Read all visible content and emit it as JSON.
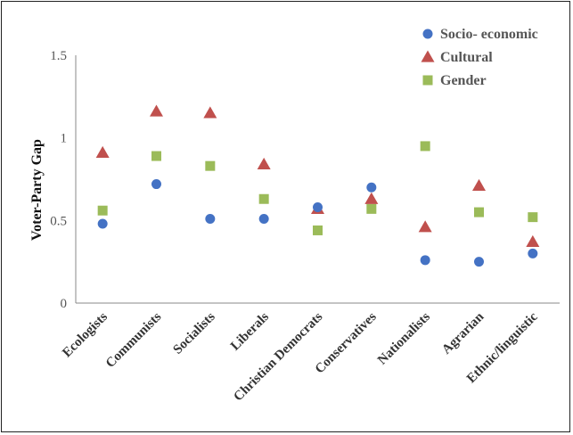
{
  "chart_data": {
    "type": "scatter",
    "ylabel": "Voter-Party Gap",
    "xlabel": "",
    "ylim": [
      0,
      1.5
    ],
    "yticks": [
      0,
      0.5,
      1,
      1.5
    ],
    "ytick_labels": [
      "0",
      "0.5",
      "1",
      "1.5"
    ],
    "categories": [
      "Ecologists",
      "Communists",
      "Socialists",
      "Liberals",
      "Christian Democrats",
      "Conservatives",
      "Nationalists",
      "Agrarian",
      "Ethnic/linguistic"
    ],
    "grid": false,
    "legend_position": "top-right",
    "series": [
      {
        "name": "Socio- economic",
        "marker": "circle",
        "color": "#4472c4",
        "values": [
          0.48,
          0.72,
          0.51,
          0.51,
          0.58,
          0.7,
          0.26,
          0.25,
          0.3
        ]
      },
      {
        "name": "Cultural",
        "marker": "triangle",
        "color": "#c0504d",
        "values": [
          0.91,
          1.16,
          1.15,
          0.84,
          0.57,
          0.63,
          0.46,
          0.71,
          0.37
        ]
      },
      {
        "name": "Gender",
        "marker": "square",
        "color": "#9bbb59",
        "values": [
          0.56,
          0.89,
          0.83,
          0.63,
          0.44,
          0.57,
          0.95,
          0.55,
          0.52
        ]
      }
    ]
  }
}
